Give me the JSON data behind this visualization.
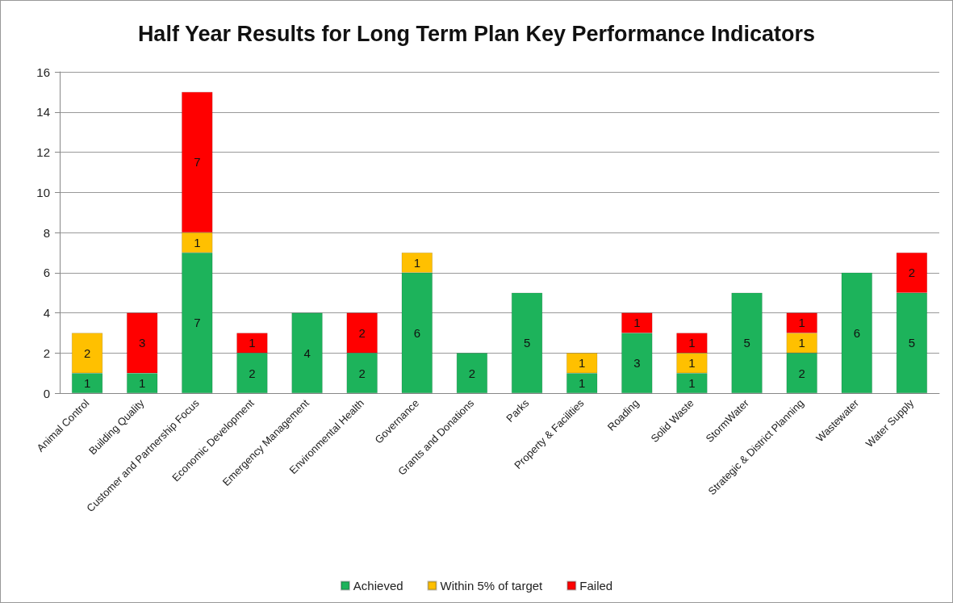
{
  "chart_data": {
    "type": "bar",
    "title": "Half Year Results for Long Term Plan Key Performance Indicators",
    "categories": [
      "Animal Control",
      "Building Quality",
      "Customer and Partnership Focus",
      "Economic Development",
      "Emergency Management",
      "Environmental Health",
      "Governance",
      "Grants and Donations",
      "Parks",
      "Property & Facilities",
      "Roading",
      "Solid Waste",
      "StormWater",
      "Strategic & District Planning",
      "Wastewater",
      "Water Supply"
    ],
    "series": [
      {
        "name": "Achieved",
        "color": "#1db35b",
        "values": [
          1,
          1,
          7,
          2,
          4,
          2,
          6,
          2,
          5,
          1,
          3,
          1,
          5,
          2,
          6,
          5
        ]
      },
      {
        "name": "Within 5% of target",
        "color": "#ffc000",
        "values": [
          2,
          null,
          1,
          null,
          null,
          null,
          1,
          null,
          null,
          1,
          null,
          1,
          null,
          1,
          null,
          null
        ]
      },
      {
        "name": "Failed",
        "color": "#ff0000",
        "values": [
          null,
          3,
          7,
          1,
          null,
          2,
          null,
          null,
          null,
          null,
          1,
          1,
          null,
          1,
          null,
          2
        ]
      }
    ],
    "stacked": true,
    "data_labels": true,
    "ylim": [
      0,
      16
    ],
    "yticks": [
      0,
      2,
      4,
      6,
      8,
      10,
      12,
      14,
      16
    ],
    "grid": "y",
    "legend": "bottom"
  }
}
